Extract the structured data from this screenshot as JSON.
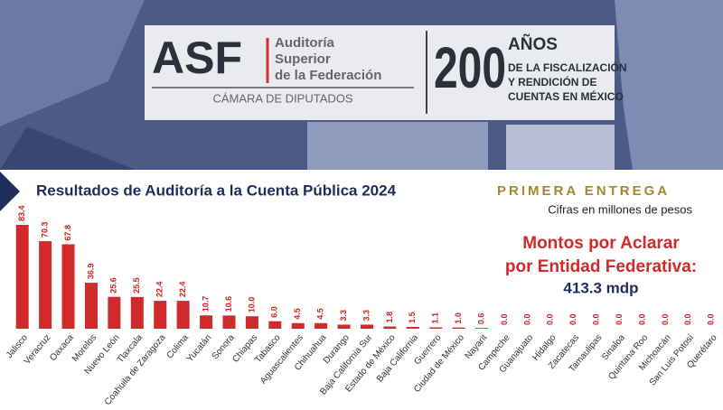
{
  "header": {
    "logo": "ASF",
    "org_lines": [
      "Auditoría",
      "Superior",
      "de la Federación"
    ],
    "chamber": "CÁMARA DE DIPUTADOS",
    "anniversary_number": "200",
    "anniversary_word": "AÑOS",
    "anniversary_lines": [
      "DE LA FISCALIZACIÓN",
      "Y RENDICIÓN DE",
      "CUENTAS EN MÉXICO"
    ]
  },
  "chart_data": {
    "type": "bar",
    "title": "Resultados de Auditoría a la Cuenta Pública 2024",
    "subtitle": "PRIMERA ENTREGA",
    "note": "Cifras en millones de pesos",
    "annotation_lines": [
      "Montos por Aclarar",
      "por Entidad Federativa:"
    ],
    "total": "413.3 mdp",
    "categories": [
      "Jalisco",
      "Veracruz",
      "Oaxaca",
      "Morelos",
      "Nuevo León",
      "Tlaxcala",
      "Coahuila de Zaragoza",
      "Colima",
      "Yucatán",
      "Sonora",
      "Chiapas",
      "Tabasco",
      "Aguascalientes",
      "Chihuahua",
      "Durango",
      "Baja California Sur",
      "Estado de México",
      "Baja California",
      "Guerrero",
      "Ciudad de México",
      "Nayarit",
      "Campeche",
      "Guanajuato",
      "Hidalgo",
      "Zacatecas",
      "Tamaulipas",
      "Sinaloa",
      "Quintana Roo",
      "Michoacán",
      "San Luis Potosí",
      "Querétaro"
    ],
    "values": [
      83.4,
      70.3,
      67.8,
      36.9,
      25.6,
      25.5,
      22.4,
      22.4,
      10.7,
      10.6,
      10.0,
      6.0,
      4.5,
      4.5,
      3.3,
      3.3,
      1.8,
      1.5,
      1.1,
      1.0,
      0.6,
      0.0,
      0.0,
      0.0,
      0.0,
      0.0,
      0.0,
      0.0,
      0.0,
      0.0,
      0.0
    ],
    "value_labels": [
      "83.4",
      "70.3",
      "67.8",
      "36.9",
      "25.6",
      "25.5",
      "22.4",
      "22.4",
      "10.7",
      "10.6",
      "10.0",
      "6.0",
      "4.5",
      "4.5",
      "3.3",
      "3.3",
      "1.8",
      "1.5",
      "1.1",
      "1.0",
      "0.6",
      "0.0",
      "0.0",
      "0.0",
      "0.0",
      "0.0",
      "0.0",
      "0.0",
      "0.0",
      "0.0",
      "0.0"
    ],
    "color": "#d12a2a"
  }
}
